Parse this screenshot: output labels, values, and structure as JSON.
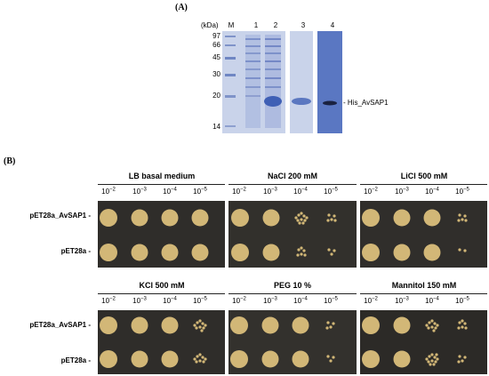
{
  "panelA": {
    "label": "(A)",
    "kda_label": "(kDa)",
    "marker_lane": "M",
    "lanes": [
      "1",
      "2",
      "3",
      "4"
    ],
    "ladder": [
      "97",
      "66",
      "45",
      "30",
      "20",
      "14"
    ],
    "band_label": "His_AvSAP1"
  },
  "panelB": {
    "label": "(B)",
    "dilution_base": "10",
    "dilution_exponents": [
      "−2",
      "−3",
      "−4",
      "−5"
    ],
    "strains": [
      "pET28a_AvSAP1",
      "pET28a"
    ],
    "plates": [
      {
        "title": "LB basal medium"
      },
      {
        "title": "NaCl 200 mM"
      },
      {
        "title": "LiCl 500 mM"
      },
      {
        "title": "KCl 500 mM"
      },
      {
        "title": "PEG 10 %"
      },
      {
        "title": "Mannitol 150 mM"
      }
    ]
  },
  "colors": {
    "gel_background": "#c9d3ea",
    "gel_band": "#3f5fb5",
    "western_background": "#5a77c2",
    "plate_background": "#2f2d2a",
    "colony": "#d2b777"
  }
}
